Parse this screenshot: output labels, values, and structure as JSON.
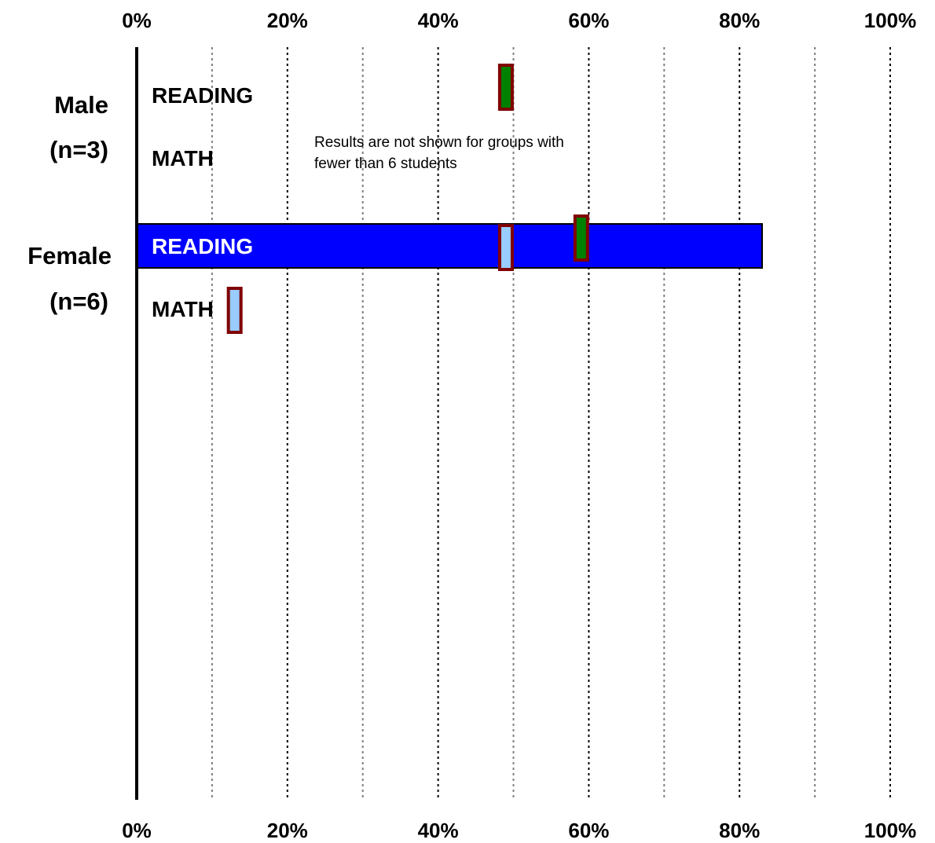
{
  "chart_data": {
    "type": "bar",
    "orientation": "horizontal",
    "x_axis": {
      "min": 0,
      "max": 100,
      "unit": "%",
      "tick_labels": [
        "0%",
        "20%",
        "40%",
        "60%",
        "80%",
        "100%"
      ],
      "major_gridlines": [
        20,
        40,
        60,
        80,
        100
      ],
      "minor_gridlines": [
        10,
        30,
        50,
        70,
        90
      ],
      "position": "top and bottom"
    },
    "groups": [
      {
        "name": "Male",
        "n_label": "(n=3)",
        "rows": [
          {
            "subject": "READING",
            "value": null,
            "marker_green": 49
          },
          {
            "subject": "MATH",
            "value": null
          }
        ],
        "note": [
          "Results are not shown for groups with",
          "fewer than 6 students"
        ]
      },
      {
        "name": "Female",
        "n_label": "(n=6)",
        "rows": [
          {
            "subject": "READING",
            "value": 83,
            "marker_light": 49,
            "marker_green": 59
          },
          {
            "subject": "MATH",
            "value": null,
            "marker_light": 13
          }
        ]
      }
    ],
    "colors": {
      "bar": "#0000ff",
      "bar_label": "#ffffff",
      "label": "#000000",
      "marker_border": "#800000",
      "marker_green": "#008000",
      "marker_light": "#99ccff"
    },
    "legend": "none"
  }
}
